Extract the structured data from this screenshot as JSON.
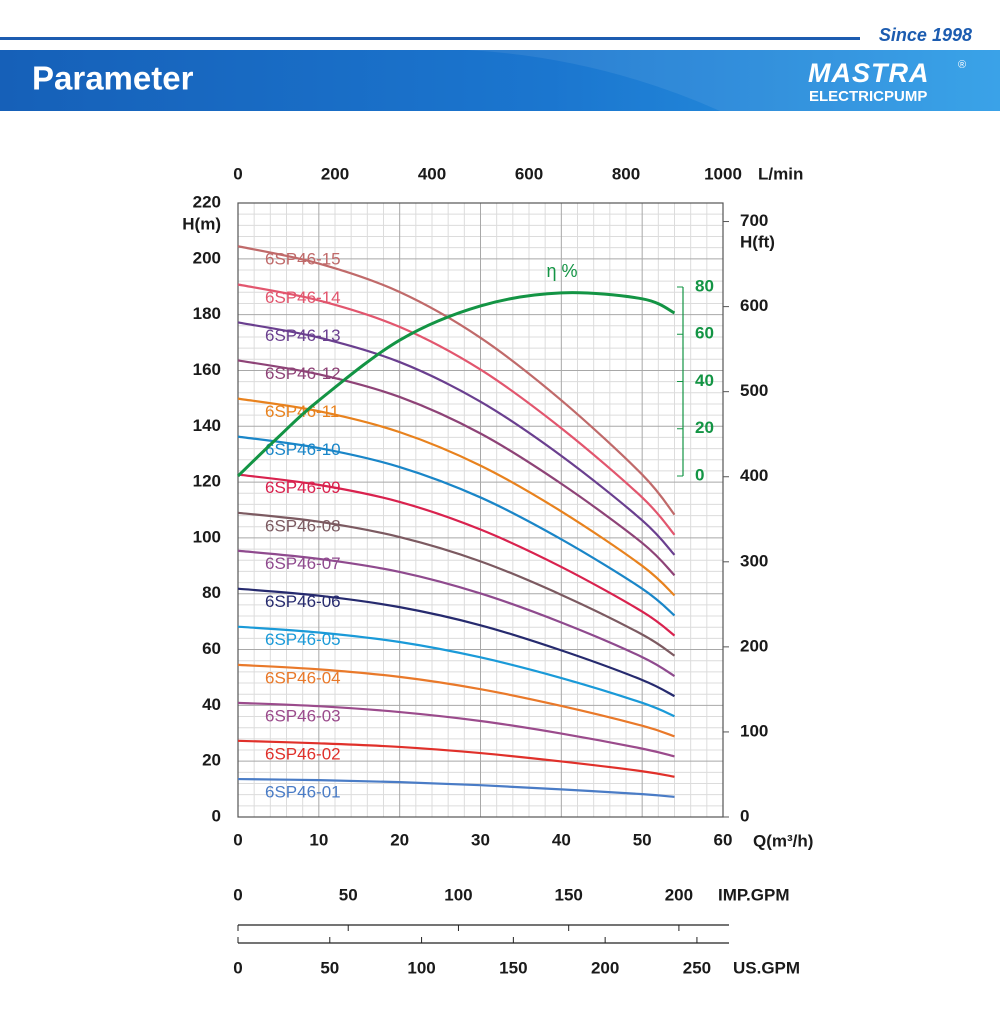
{
  "header": {
    "since": "Since 1998",
    "title": "Parameter",
    "logo": "MASTRA",
    "registered": "®",
    "brand": "ELECTRICPUMP"
  },
  "chart_data": {
    "type": "line",
    "x": [
      0,
      10,
      20,
      30,
      40,
      50,
      54
    ],
    "xlim": [
      0,
      60
    ],
    "xticks": [
      0,
      10,
      20,
      30,
      40,
      50,
      60
    ],
    "xlabel": "Q(m³/h)",
    "ylim": [
      0,
      220
    ],
    "yticks": [
      0,
      20,
      40,
      60,
      80,
      100,
      120,
      140,
      160,
      180,
      200,
      220
    ],
    "ylabel": "H(m)",
    "y2lim": [
      0,
      721.8
    ],
    "y2ticks": [
      0,
      100,
      200,
      300,
      400,
      500,
      600,
      700
    ],
    "y2label": "H(ft)",
    "x2lim": [
      0,
      1000
    ],
    "x2ticks": [
      0,
      200,
      400,
      600,
      800,
      1000
    ],
    "x2label": "L/min",
    "imp_gpm": {
      "label": "IMP.GPM",
      "lim": [
        0,
        220
      ],
      "ticks": [
        0,
        50,
        100,
        150,
        200
      ]
    },
    "us_gpm": {
      "label": "US.GPM",
      "lim": [
        0,
        264.2
      ],
      "ticks": [
        0,
        50,
        100,
        150,
        200,
        250
      ]
    },
    "grid": true,
    "series": [
      {
        "name": "6SP46-01",
        "color": "#4a7cc6",
        "values": [
          13.6,
          13.2,
          12.5,
          11.4,
          9.9,
          8.2,
          7.2
        ]
      },
      {
        "name": "6SP46-02",
        "color": "#e0302a",
        "values": [
          27.3,
          26.4,
          25.1,
          22.9,
          19.9,
          16.4,
          14.4
        ]
      },
      {
        "name": "6SP46-03",
        "color": "#9b4b8c",
        "values": [
          40.9,
          39.7,
          37.6,
          34.4,
          29.9,
          24.5,
          21.7
        ]
      },
      {
        "name": "6SP46-04",
        "color": "#e9792a",
        "values": [
          54.5,
          52.9,
          50.2,
          45.8,
          39.8,
          32.7,
          28.9
        ]
      },
      {
        "name": "6SP46-05",
        "color": "#1a9ad8",
        "values": [
          68.2,
          66.1,
          62.7,
          57.2,
          49.8,
          40.9,
          36.1
        ]
      },
      {
        "name": "6SP46-06",
        "color": "#262a6e",
        "values": [
          81.8,
          79.3,
          75.2,
          68.7,
          59.7,
          49.1,
          43.3
        ]
      },
      {
        "name": "6SP46-07",
        "color": "#8f4a8e",
        "values": [
          95.4,
          92.5,
          87.8,
          80.1,
          69.7,
          57.3,
          50.5
        ]
      },
      {
        "name": "6SP46-08",
        "color": "#7c5a61",
        "values": [
          109,
          105.8,
          100.3,
          91.6,
          79.6,
          65.4,
          57.8
        ]
      },
      {
        "name": "6SP46-09",
        "color": "#d9224e",
        "values": [
          122.7,
          119,
          112.9,
          103,
          89.6,
          73.6,
          65
        ]
      },
      {
        "name": "6SP46-10",
        "color": "#1a86c8",
        "values": [
          136.3,
          132.2,
          125.4,
          114.5,
          99.5,
          81.8,
          72.2
        ]
      },
      {
        "name": "6SP46-11",
        "color": "#e8821e",
        "values": [
          149.9,
          145.4,
          137.9,
          125.9,
          109.5,
          90,
          79.4
        ]
      },
      {
        "name": "6SP46-12",
        "color": "#8e4377",
        "values": [
          163.6,
          158.6,
          150.5,
          137.4,
          119.4,
          98.2,
          86.6
        ]
      },
      {
        "name": "6SP46-13",
        "color": "#6a3f8f",
        "values": [
          177.2,
          171.8,
          163,
          148.8,
          129.4,
          106.3,
          93.9
        ]
      },
      {
        "name": "6SP46-14",
        "color": "#e2566e",
        "values": [
          190.8,
          185.1,
          175.6,
          160.3,
          139.3,
          114.5,
          101.1
        ]
      },
      {
        "name": "6SP46-15",
        "color": "#c06a6a",
        "values": [
          204.5,
          198.3,
          188.1,
          171.7,
          149.3,
          122.7,
          108.3
        ]
      }
    ],
    "efficiency": {
      "label": "η %",
      "color": "#139444",
      "lim": [
        0,
        80
      ],
      "ticks": [
        0,
        20,
        40,
        60,
        80
      ],
      "x": [
        0,
        5,
        10,
        20,
        30,
        40,
        50,
        54
      ],
      "values": [
        0,
        16.5,
        32,
        57.5,
        72,
        77.5,
        75,
        69
      ]
    }
  }
}
